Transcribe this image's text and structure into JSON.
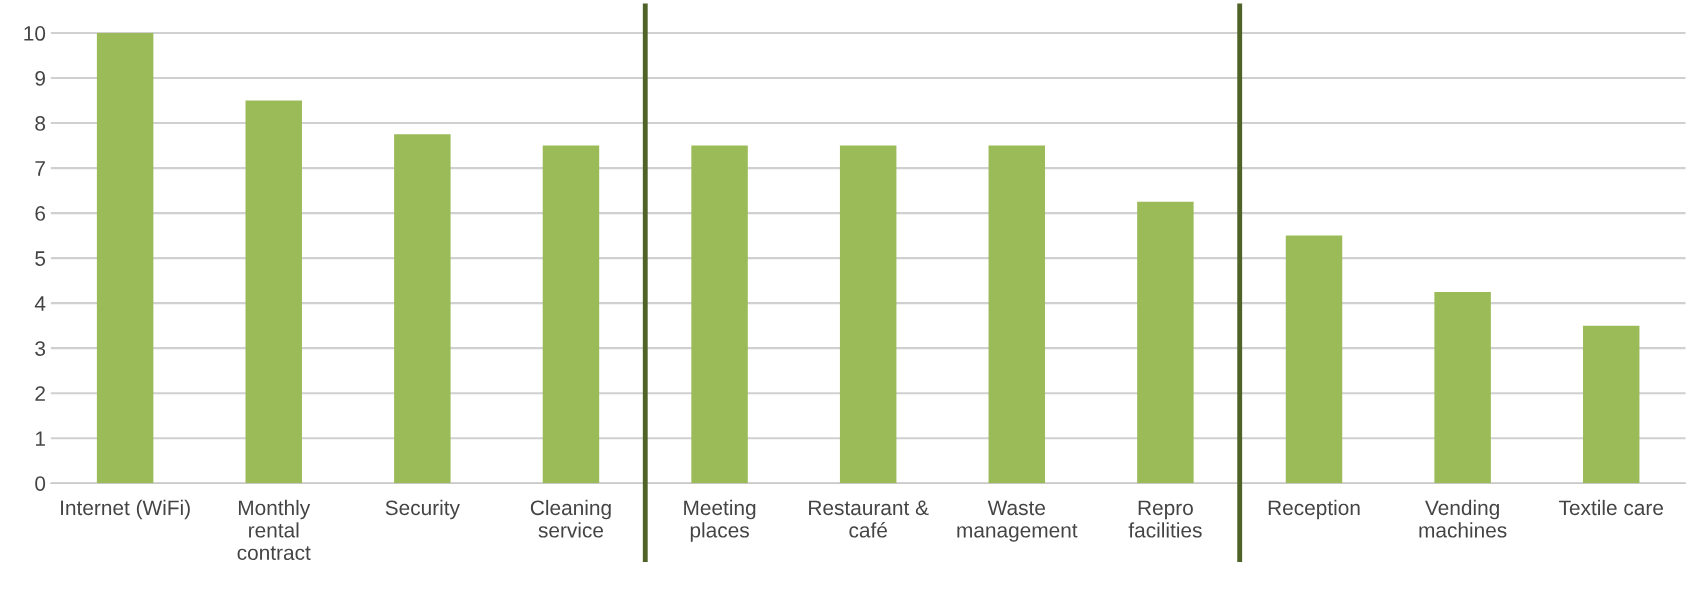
{
  "chart_data": {
    "type": "bar",
    "categories": [
      "Internet (WiFi)",
      "Monthly\nrental\ncontract",
      "Security",
      "Cleaning\nservice",
      "Meeting\nplaces",
      "Restaurant &\ncafé",
      "Waste\nmanagement",
      "Repro\nfacilities",
      "Reception",
      "Vending\nmachines",
      "Textile care"
    ],
    "values": [
      10,
      8.5,
      7.75,
      7.5,
      7.5,
      7.5,
      7.5,
      6.25,
      5.5,
      4.25,
      3.5
    ],
    "color": "#9bbb59",
    "ylim": [
      0,
      10.6
    ],
    "yticks": [
      0,
      1,
      2,
      3,
      4,
      5,
      6,
      7,
      8,
      9,
      10
    ],
    "grid": "y"
  }
}
